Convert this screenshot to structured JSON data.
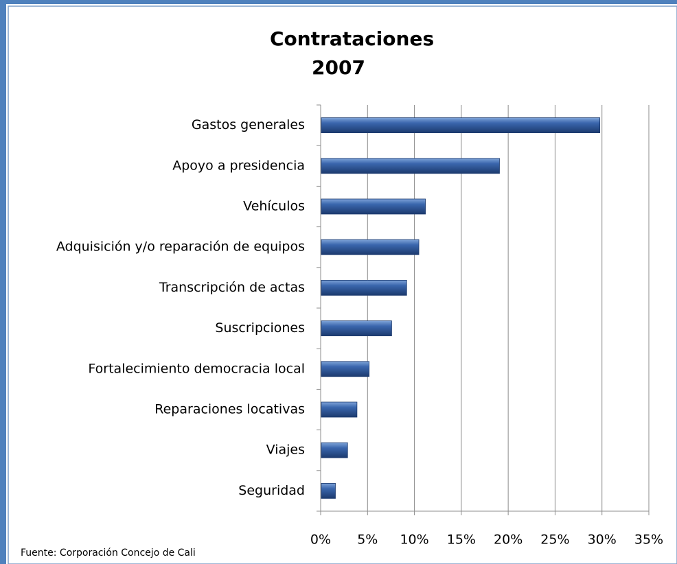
{
  "chart_data": {
    "type": "bar",
    "orientation": "horizontal",
    "title": "Contrataciones 2007",
    "categories": [
      "Gastos generales",
      "Apoyo a presidencia",
      "Vehículos",
      "Adquisición y/o reparación de equipos",
      "Transcripción de actas",
      "Suscripciones",
      "Fortalecimiento democracia local",
      "Reparaciones locativas",
      "Viajes",
      "Seguridad"
    ],
    "values": [
      29.7,
      19.0,
      11.1,
      10.4,
      9.1,
      7.5,
      5.1,
      3.8,
      2.8,
      1.5
    ],
    "color": "#2f5597",
    "xlim": [
      0,
      35
    ],
    "xticks": [
      {
        "value": 0,
        "label": "0%"
      },
      {
        "value": 5,
        "label": "5%"
      },
      {
        "value": 10,
        "label": "10%"
      },
      {
        "value": 15,
        "label": "15%"
      },
      {
        "value": 20,
        "label": "20%"
      },
      {
        "value": 25,
        "label": "25%"
      },
      {
        "value": 30,
        "label": "30%"
      },
      {
        "value": 35,
        "label": "35%"
      }
    ],
    "grid": true,
    "note": "Fuente: Corporación Concejo de Cali"
  }
}
